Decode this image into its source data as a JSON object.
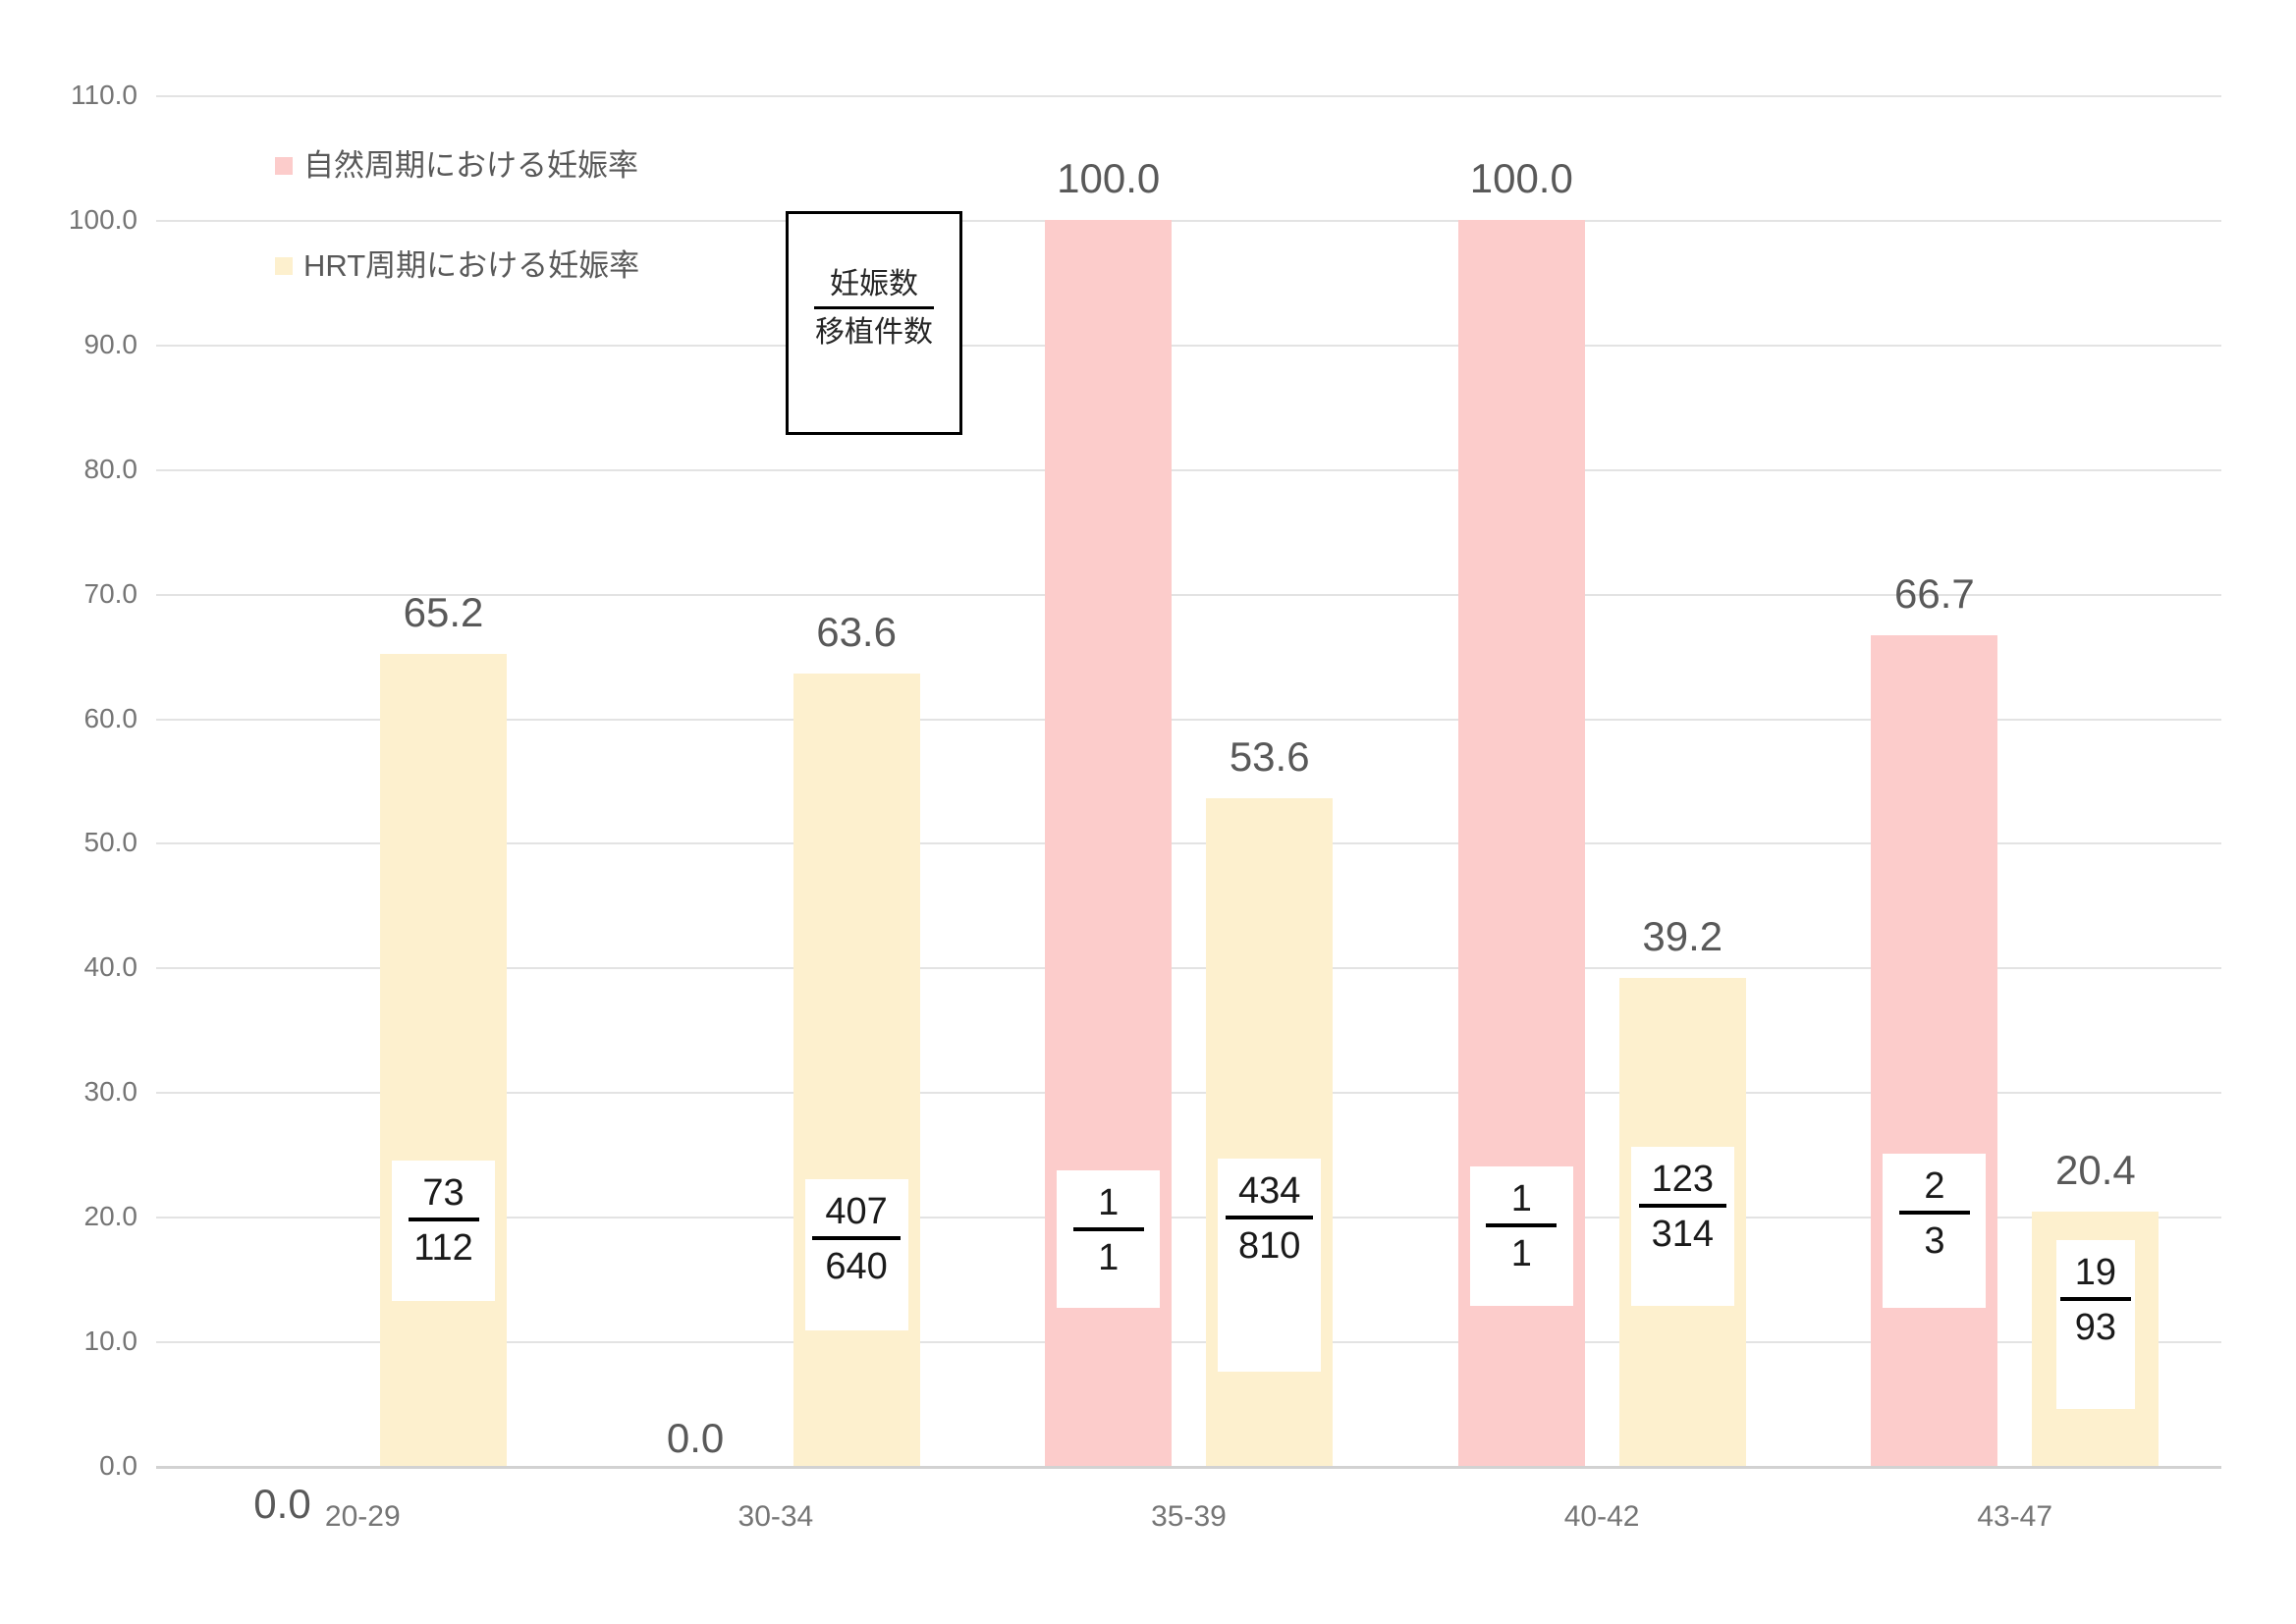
{
  "legend": {
    "items": [
      {
        "label": "自然周期における妊娠率",
        "color": "#FCCCCB"
      },
      {
        "label": "HRT周期における妊娠率",
        "color": "#FDF0CE"
      }
    ]
  },
  "annotation": {
    "numerator": "妊娠数",
    "denominator": "移植件数"
  },
  "y_axis": {
    "ticks": [
      "110.0",
      "100.0",
      "90.0",
      "80.0",
      "70.0",
      "60.0",
      "50.0",
      "40.0",
      "30.0",
      "20.0",
      "10.0",
      "0.0"
    ],
    "min": 0,
    "max": 110,
    "step": 10
  },
  "chart_data": {
    "type": "bar",
    "title": "",
    "xlabel": "",
    "ylabel": "",
    "categories": [
      "20-29",
      "30-34",
      "35-39",
      "40-42",
      "43-47"
    ],
    "series": [
      {
        "name": "自然周期における妊娠率",
        "color": "#FCCCCB",
        "values": [
          0.0,
          0.0,
          100.0,
          100.0,
          66.7
        ],
        "labels": [
          "0.0",
          "0.0",
          "100.0",
          "100.0",
          "66.7"
        ],
        "fractions": [
          null,
          null,
          {
            "num": "1",
            "den": "1"
          },
          {
            "num": "1",
            "den": "1"
          },
          {
            "num": "2",
            "den": "3"
          }
        ]
      },
      {
        "name": "HRT周期における妊娠率",
        "color": "#FDF0CE",
        "values": [
          65.2,
          63.6,
          53.6,
          39.2,
          20.4
        ],
        "labels": [
          "65.2",
          "63.6",
          "53.6",
          "39.2",
          "20.4"
        ],
        "fractions": [
          {
            "num": "73",
            "den": "112"
          },
          {
            "num": "407",
            "den": "640"
          },
          {
            "num": "434",
            "den": "810"
          },
          {
            "num": "123",
            "den": "314"
          },
          {
            "num": "19",
            "den": "93"
          }
        ]
      }
    ],
    "ylim": [
      0,
      110
    ],
    "grid": true,
    "legend_position": "top-left"
  }
}
